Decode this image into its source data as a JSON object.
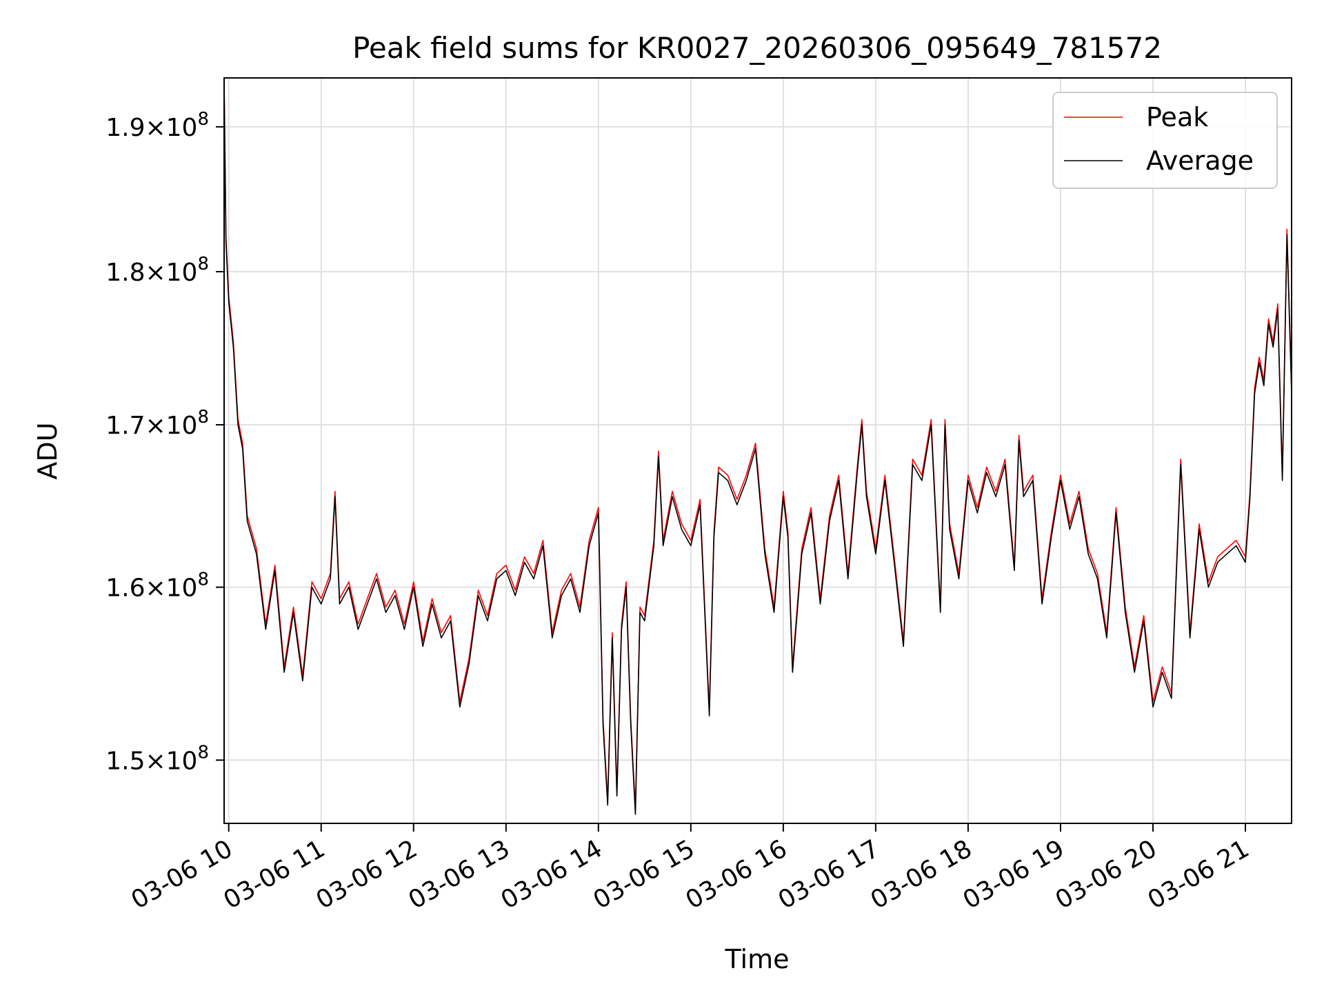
{
  "chart_data": {
    "type": "line",
    "title": "Peak field sums for KR0027_20260306_095649_781572",
    "xlabel": "Time",
    "ylabel": "ADU",
    "grid": true,
    "legend_position": "top-right",
    "x_unit": "hours since 03-06 00:00",
    "xlim": [
      9.95,
      21.5
    ],
    "ylim": [
      146500000,
      193500000
    ],
    "x_ticks": [
      {
        "value": 10,
        "label": "03-06 10"
      },
      {
        "value": 11,
        "label": "03-06 11"
      },
      {
        "value": 12,
        "label": "03-06 12"
      },
      {
        "value": 13,
        "label": "03-06 13"
      },
      {
        "value": 14,
        "label": "03-06 14"
      },
      {
        "value": 15,
        "label": "03-06 15"
      },
      {
        "value": 16,
        "label": "03-06 16"
      },
      {
        "value": 17,
        "label": "03-06 17"
      },
      {
        "value": 18,
        "label": "03-06 18"
      },
      {
        "value": 19,
        "label": "03-06 19"
      },
      {
        "value": 20,
        "label": "03-06 20"
      },
      {
        "value": 21,
        "label": "03-06 21"
      }
    ],
    "y_ticks": [
      {
        "value": 150000000,
        "mantissa": "1.5",
        "base": "10",
        "exponent": "8"
      },
      {
        "value": 160000000,
        "mantissa": "1.6",
        "base": "10",
        "exponent": "8"
      },
      {
        "value": 170000000,
        "mantissa": "1.7",
        "base": "10",
        "exponent": "8"
      },
      {
        "value": 180000000,
        "mantissa": "1.8",
        "base": "10",
        "exponent": "8"
      },
      {
        "value": 190000000,
        "mantissa": "1.9",
        "base": "10",
        "exponent": "8"
      }
    ],
    "times_mult_sign": "×",
    "series": [
      {
        "name": "Peak",
        "color": "#ff0000",
        "y_offset_factor": 1.002
      },
      {
        "name": "Average",
        "color": "#000000",
        "y_offset_factor": 1.0
      }
    ],
    "x": [
      9.95,
      9.97,
      10.0,
      10.05,
      10.1,
      10.15,
      10.2,
      10.3,
      10.4,
      10.5,
      10.6,
      10.7,
      10.8,
      10.9,
      11.0,
      11.1,
      11.15,
      11.2,
      11.3,
      11.4,
      11.5,
      11.6,
      11.7,
      11.8,
      11.9,
      12.0,
      12.1,
      12.2,
      12.3,
      12.4,
      12.5,
      12.6,
      12.7,
      12.8,
      12.9,
      13.0,
      13.1,
      13.2,
      13.3,
      13.4,
      13.5,
      13.6,
      13.7,
      13.8,
      13.9,
      14.0,
      14.05,
      14.1,
      14.15,
      14.2,
      14.25,
      14.3,
      14.35,
      14.4,
      14.45,
      14.5,
      14.6,
      14.65,
      14.7,
      14.8,
      14.9,
      15.0,
      15.1,
      15.2,
      15.25,
      15.3,
      15.4,
      15.5,
      15.6,
      15.7,
      15.8,
      15.9,
      16.0,
      16.05,
      16.1,
      16.2,
      16.3,
      16.4,
      16.5,
      16.6,
      16.7,
      16.8,
      16.85,
      16.9,
      17.0,
      17.1,
      17.2,
      17.3,
      17.4,
      17.5,
      17.6,
      17.7,
      17.75,
      17.8,
      17.9,
      18.0,
      18.1,
      18.2,
      18.3,
      18.4,
      18.5,
      18.55,
      18.6,
      18.7,
      18.8,
      18.9,
      19.0,
      19.1,
      19.2,
      19.3,
      19.4,
      19.5,
      19.6,
      19.7,
      19.8,
      19.9,
      20.0,
      20.1,
      20.2,
      20.3,
      20.4,
      20.5,
      20.6,
      20.7,
      20.8,
      20.9,
      21.0,
      21.05,
      21.1,
      21.15,
      21.2,
      21.25,
      21.3,
      21.35,
      21.4,
      21.45,
      21.5
    ],
    "values": [
      193000000,
      182000000,
      178000000,
      175000000,
      170000000,
      168500000,
      164000000,
      162000000,
      157500000,
      161000000,
      155000000,
      158500000,
      154500000,
      160000000,
      159000000,
      160500000,
      165500000,
      159000000,
      160000000,
      157500000,
      159000000,
      160500000,
      158500000,
      159500000,
      157500000,
      160000000,
      156500000,
      159000000,
      157000000,
      158000000,
      153000000,
      155500000,
      159500000,
      158000000,
      160500000,
      161000000,
      159500000,
      161500000,
      160500000,
      162500000,
      157000000,
      159500000,
      160500000,
      158500000,
      162500000,
      164500000,
      152000000,
      147500000,
      157000000,
      148000000,
      157500000,
      160000000,
      152000000,
      147000000,
      158500000,
      158000000,
      162500000,
      168000000,
      162500000,
      165500000,
      163500000,
      162500000,
      165000000,
      152500000,
      163000000,
      167000000,
      166500000,
      165000000,
      166500000,
      168500000,
      162000000,
      158500000,
      165500000,
      163000000,
      155000000,
      162000000,
      164500000,
      159000000,
      164000000,
      166500000,
      160500000,
      167000000,
      170000000,
      165500000,
      162000000,
      166500000,
      161500000,
      156500000,
      167500000,
      166500000,
      170000000,
      158500000,
      170000000,
      163500000,
      160500000,
      166500000,
      164500000,
      167000000,
      165500000,
      167500000,
      161000000,
      169000000,
      165500000,
      166500000,
      159000000,
      163000000,
      166500000,
      163500000,
      165500000,
      162000000,
      160500000,
      157000000,
      164500000,
      158500000,
      155000000,
      158000000,
      153000000,
      155000000,
      153500000,
      167500000,
      157000000,
      163500000,
      160000000,
      161500000,
      162000000,
      162500000,
      161500000,
      165500000,
      172000000,
      174000000,
      172500000,
      176500000,
      175000000,
      177500000,
      166500000,
      182500000,
      172000000
    ]
  },
  "legend": {
    "peak_label": "Peak",
    "average_label": "Average"
  }
}
